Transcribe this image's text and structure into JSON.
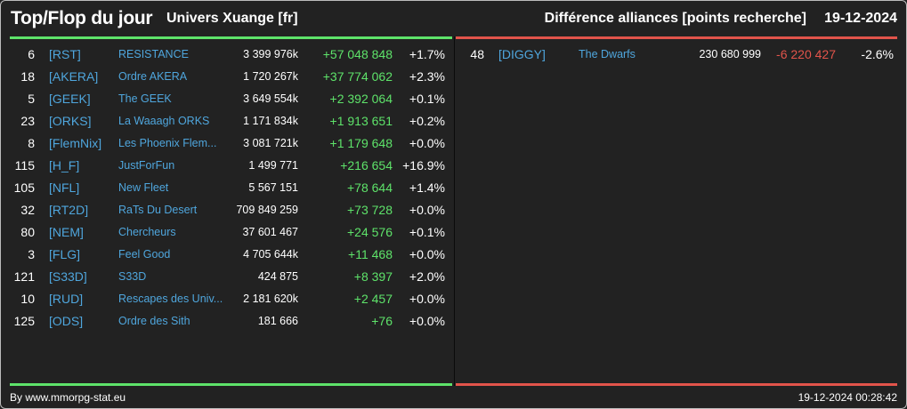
{
  "header": {
    "title": "Top/Flop du jour",
    "universe": "Univers Xuange [fr]",
    "subtitle": "Différence alliances [points recherche]",
    "date": "19-12-2024"
  },
  "colors": {
    "positive": "#5ee36a",
    "negative": "#e2544b",
    "link": "#4fa6dd",
    "top_bar": "#5ee36a",
    "flop_bar": "#e2544b"
  },
  "top": [
    {
      "rank": "6",
      "tag": "[RST]",
      "name": "RESISTANCE",
      "points": "3 399 976k",
      "diff": "+57 048 848",
      "pct": "+1.7%"
    },
    {
      "rank": "18",
      "tag": "[AKERA]",
      "name": "Ordre AKERA",
      "points": "1 720 267k",
      "diff": "+37 774 062",
      "pct": "+2.3%"
    },
    {
      "rank": "5",
      "tag": "[GEEK]",
      "name": "The GEEK",
      "points": "3 649 554k",
      "diff": "+2 392 064",
      "pct": "+0.1%"
    },
    {
      "rank": "23",
      "tag": "[ORKS]",
      "name": "La Waaagh ORKS",
      "points": "1 171 834k",
      "diff": "+1 913 651",
      "pct": "+0.2%"
    },
    {
      "rank": "8",
      "tag": "[FlemNix]",
      "name": "Les Phoenix Flem...",
      "points": "3 081 721k",
      "diff": "+1 179 648",
      "pct": "+0.0%"
    },
    {
      "rank": "115",
      "tag": "[H_F]",
      "name": "JustForFun",
      "points": "1 499 771",
      "diff": "+216 654",
      "pct": "+16.9%"
    },
    {
      "rank": "105",
      "tag": "[NFL]",
      "name": "New Fleet",
      "points": "5 567 151",
      "diff": "+78 644",
      "pct": "+1.4%"
    },
    {
      "rank": "32",
      "tag": "[RT2D]",
      "name": "RaTs Du Desert",
      "points": "709 849 259",
      "diff": "+73 728",
      "pct": "+0.0%"
    },
    {
      "rank": "80",
      "tag": "[NEM]",
      "name": "Chercheurs",
      "points": "37 601 467",
      "diff": "+24 576",
      "pct": "+0.1%"
    },
    {
      "rank": "3",
      "tag": "[FLG]",
      "name": "Feel Good",
      "points": "4 705 644k",
      "diff": "+11 468",
      "pct": "+0.0%"
    },
    {
      "rank": "121",
      "tag": "[S33D]",
      "name": "S33D",
      "points": "424 875",
      "diff": "+8 397",
      "pct": "+2.0%"
    },
    {
      "rank": "10",
      "tag": "[RUD]",
      "name": "Rescapes des Univ...",
      "points": "2 181 620k",
      "diff": "+2 457",
      "pct": "+0.0%"
    },
    {
      "rank": "125",
      "tag": "[ODS]",
      "name": "Ordre des Sith",
      "points": "181 666",
      "diff": "+76",
      "pct": "+0.0%"
    }
  ],
  "flop": [
    {
      "rank": "48",
      "tag": "[DIGGY]",
      "name": "The Dwarfs",
      "points": "230 680 999",
      "diff": "-6 220 427",
      "pct": "-2.6%"
    }
  ],
  "footer": {
    "source": "By www.mmorpg-stat.eu",
    "timestamp": "19-12-2024 00:28:42"
  }
}
